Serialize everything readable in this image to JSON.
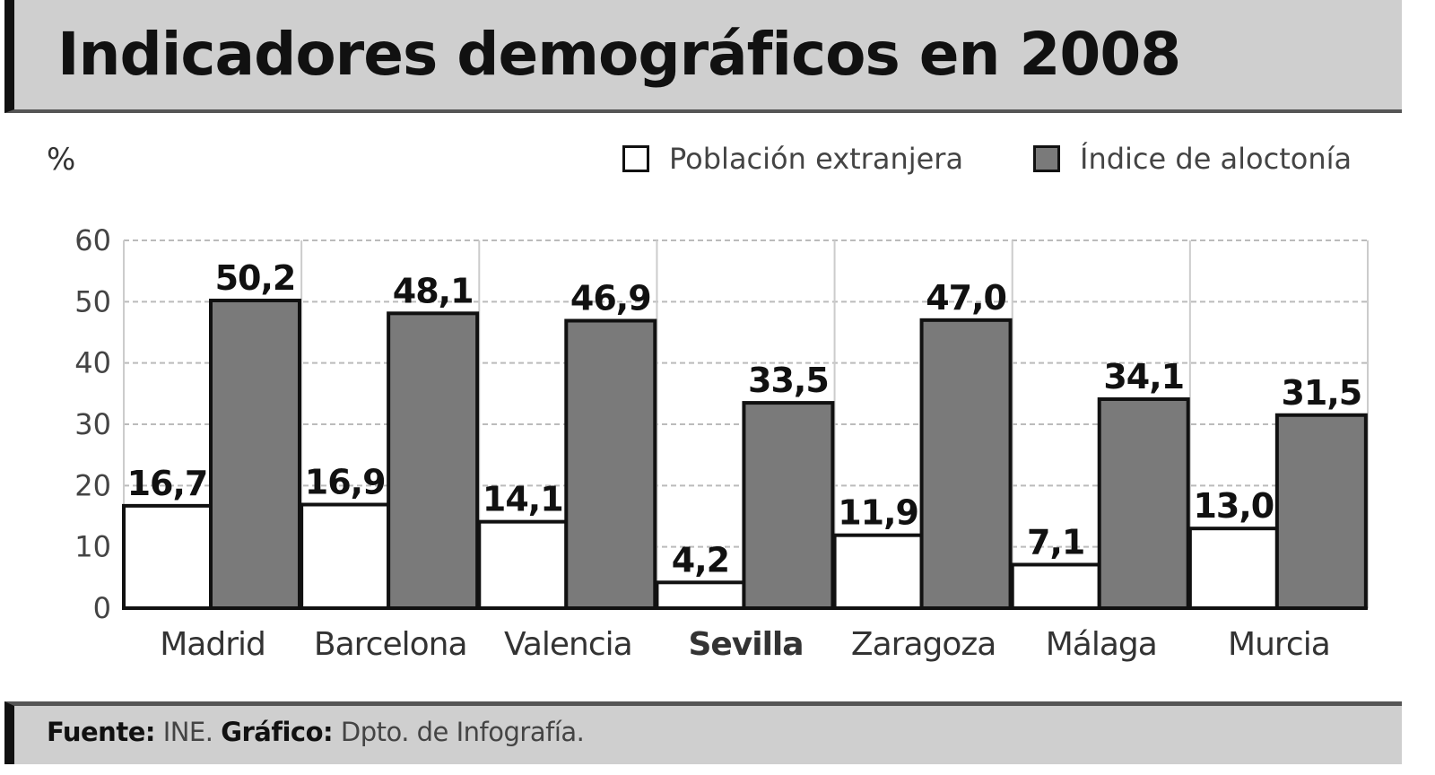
{
  "chart_data": {
    "type": "bar",
    "title": "Indicadores demográficos en 2008",
    "ylabel": "%",
    "xlabel": "",
    "ylim": [
      0,
      60
    ],
    "yticks": [
      0,
      10,
      20,
      30,
      40,
      50,
      60
    ],
    "grid": true,
    "legend_position": "top-right",
    "categories": [
      "Madrid",
      "Barcelona",
      "Valencia",
      "Sevilla",
      "Zaragoza",
      "Málaga",
      "Murcia"
    ],
    "highlighted_category": "Sevilla",
    "series": [
      {
        "name": "Población extranjera",
        "color": "#ffffff",
        "values": [
          16.7,
          16.9,
          14.1,
          4.2,
          11.9,
          7.1,
          13.0
        ],
        "labels": [
          "16,7",
          "16,9",
          "14,1",
          "4,2",
          "11,9",
          "7,1",
          "13,0"
        ]
      },
      {
        "name": "Índice de aloctonía",
        "color": "#7a7a7a",
        "values": [
          50.2,
          48.1,
          46.9,
          33.5,
          47.0,
          34.1,
          31.5
        ],
        "labels": [
          "50,2",
          "48,1",
          "46,9",
          "33,5",
          "47,0",
          "34,1",
          "31,5"
        ]
      }
    ]
  },
  "footer": {
    "source_label": "Fuente:",
    "source_value": "INE.",
    "credit_label": "Gráfico:",
    "credit_value": "Dpto. de Infografía."
  }
}
